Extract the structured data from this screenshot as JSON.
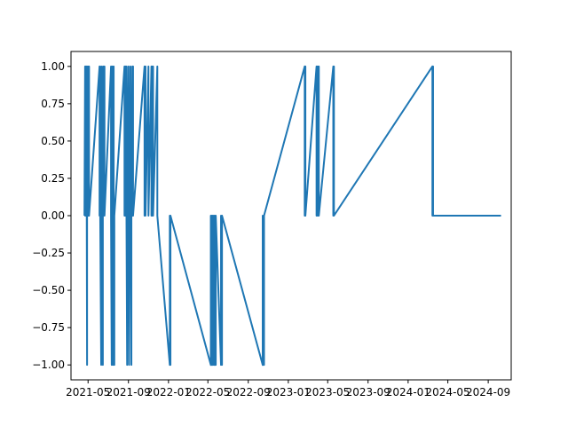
{
  "chart_data": {
    "type": "line",
    "title": "",
    "xlabel": "",
    "ylabel": "",
    "grid": false,
    "legend": "none",
    "line_color": "#1f77b4",
    "x_axis_type": "date",
    "xlim": [
      "2021-03-10",
      "2024-11-10"
    ],
    "ylim": [
      -1.1,
      1.1
    ],
    "x_ticks": [
      {
        "value": "2021-05-01",
        "label": "2021-05"
      },
      {
        "value": "2021-09-01",
        "label": "2021-09"
      },
      {
        "value": "2022-01-01",
        "label": "2022-01"
      },
      {
        "value": "2022-05-01",
        "label": "2022-05"
      },
      {
        "value": "2022-09-01",
        "label": "2022-09"
      },
      {
        "value": "2023-01-01",
        "label": "2023-01"
      },
      {
        "value": "2023-05-01",
        "label": "2023-05"
      },
      {
        "value": "2023-09-01",
        "label": "2023-09"
      },
      {
        "value": "2024-01-01",
        "label": "2024-01"
      },
      {
        "value": "2024-05-01",
        "label": "2024-05"
      },
      {
        "value": "2024-09-01",
        "label": "2024-09"
      }
    ],
    "y_ticks": [
      {
        "value": 1.0,
        "label": "1.00"
      },
      {
        "value": 0.75,
        "label": "0.75"
      },
      {
        "value": 0.5,
        "label": "0.50"
      },
      {
        "value": 0.25,
        "label": "0.25"
      },
      {
        "value": 0.0,
        "label": "0.00"
      },
      {
        "value": -0.25,
        "label": "−0.25"
      },
      {
        "value": -0.5,
        "label": "−0.50"
      },
      {
        "value": -0.75,
        "label": "−0.75"
      },
      {
        "value": -1.0,
        "label": "−1.00"
      }
    ],
    "series": [
      {
        "x": [
          "2021-04-20",
          "2021-04-22",
          "2021-04-22",
          "2021-04-23",
          "2021-04-23",
          "2021-04-25",
          "2021-04-25",
          "2021-04-27",
          "2021-04-27",
          "2021-04-28",
          "2021-04-28",
          "2021-04-30",
          "2021-04-30",
          "2021-05-02",
          "2021-05-02",
          "2021-05-04",
          "2021-05-04",
          "2021-06-05",
          "2021-06-05",
          "2021-06-07",
          "2021-06-07",
          "2021-06-10",
          "2021-06-10",
          "2021-06-12",
          "2021-06-12",
          "2021-06-15",
          "2021-06-15",
          "2021-06-17",
          "2021-06-17",
          "2021-06-20",
          "2021-06-20",
          "2021-07-10",
          "2021-07-10",
          "2021-07-12",
          "2021-07-12",
          "2021-07-14",
          "2021-07-14",
          "2021-07-16",
          "2021-07-16",
          "2021-07-18",
          "2021-07-18",
          "2021-07-20",
          "2021-07-20",
          "2021-08-20",
          "2021-08-20",
          "2021-08-22",
          "2021-08-22",
          "2021-08-24",
          "2021-08-24",
          "2021-08-26",
          "2021-08-26",
          "2021-08-28",
          "2021-08-28",
          "2021-09-01",
          "2021-09-01",
          "2021-09-03",
          "2021-09-03",
          "2021-09-07",
          "2021-09-07",
          "2021-09-10",
          "2021-09-10",
          "2021-09-13",
          "2021-09-13",
          "2021-09-15",
          "2021-09-15",
          "2021-10-20",
          "2021-10-20",
          "2021-10-23",
          "2021-10-23",
          "2021-11-01",
          "2021-11-01",
          "2021-11-10",
          "2021-11-10",
          "2021-11-12",
          "2021-11-12",
          "2021-11-15",
          "2021-11-15",
          "2021-11-28",
          "2021-11-28",
          "2022-01-05",
          "2022-01-05",
          "2022-01-07",
          "2022-01-07",
          "2022-05-10",
          "2022-05-10",
          "2022-05-12",
          "2022-05-12",
          "2022-05-14",
          "2022-05-14",
          "2022-05-16",
          "2022-05-16",
          "2022-05-19",
          "2022-05-19",
          "2022-05-21",
          "2022-05-21",
          "2022-05-23",
          "2022-05-23",
          "2022-05-25",
          "2022-05-25",
          "2022-06-10",
          "2022-06-10",
          "2022-06-13",
          "2022-06-13",
          "2022-10-15",
          "2022-10-15",
          "2022-10-17",
          "2022-10-17",
          "2022-10-19",
          "2022-10-19",
          "2023-02-20",
          "2023-02-20",
          "2023-02-22",
          "2023-02-22",
          "2023-03-28",
          "2023-03-28",
          "2023-03-30",
          "2023-03-30",
          "2023-04-02",
          "2023-04-02",
          "2023-04-04",
          "2023-04-04",
          "2023-05-18",
          "2023-05-18",
          "2023-05-20",
          "2023-05-20",
          "2024-03-15",
          "2024-03-15",
          "2024-03-17",
          "2024-03-17",
          "2024-10-10"
        ],
        "y": [
          0,
          1,
          0,
          1,
          0,
          1,
          0,
          1,
          0,
          -1,
          0,
          1,
          0,
          1,
          0,
          1,
          0,
          1,
          0,
          1,
          0,
          -1,
          0,
          1,
          0,
          -1,
          0,
          1,
          0,
          1,
          0,
          1,
          0,
          -1,
          0,
          1,
          0,
          -1,
          0,
          1,
          0,
          -1,
          0,
          1,
          0,
          1,
          0,
          1,
          0,
          1,
          0,
          -1,
          0,
          1,
          0,
          -1,
          0,
          1,
          0,
          -1,
          0,
          1,
          0,
          1,
          0,
          1,
          0,
          1,
          0,
          1,
          0,
          1,
          0,
          1,
          0,
          1,
          0,
          1,
          0,
          -1,
          0,
          -1,
          0,
          -1,
          0,
          -1,
          0,
          -1,
          0,
          -1,
          0,
          -1,
          0,
          -1,
          0,
          -1,
          0,
          -1,
          0,
          -1,
          0,
          -1,
          0,
          -1,
          0,
          -1,
          0,
          -1,
          0,
          1,
          0,
          1,
          0,
          1,
          0,
          1,
          0,
          1,
          0,
          1,
          0,
          1,
          0,
          1,
          0,
          1,
          0,
          1,
          0,
          0
        ]
      }
    ]
  }
}
